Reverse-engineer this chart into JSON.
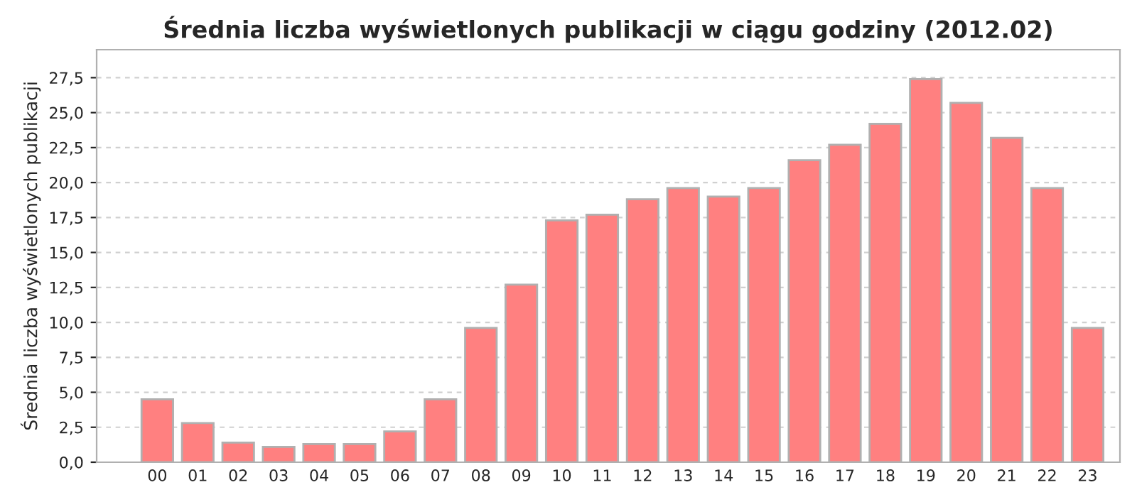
{
  "chart_data": {
    "type": "bar",
    "title": "Średnia liczba wyświetlonych publikacji w ciągu godziny (2012.02)",
    "ylabel": "Średnia liczba wyświetlonych publikacji",
    "categories": [
      "00",
      "01",
      "02",
      "03",
      "04",
      "05",
      "06",
      "07",
      "08",
      "09",
      "10",
      "11",
      "12",
      "13",
      "14",
      "15",
      "16",
      "17",
      "18",
      "19",
      "20",
      "21",
      "22",
      "23"
    ],
    "values": [
      4.5,
      2.8,
      1.4,
      1.1,
      1.3,
      1.3,
      2.2,
      4.5,
      9.6,
      12.7,
      17.3,
      17.7,
      18.8,
      19.6,
      19.0,
      19.6,
      21.6,
      22.7,
      24.2,
      27.4,
      25.7,
      23.2,
      19.6,
      9.6
    ],
    "color": "#ff8080",
    "ylim": [
      0,
      29.5
    ],
    "yticks": [
      {
        "value": 0,
        "label": "0,0"
      },
      {
        "value": 2.5,
        "label": "2,5"
      },
      {
        "value": 5,
        "label": "5,0"
      },
      {
        "value": 7.5,
        "label": "7,5"
      },
      {
        "value": 10,
        "label": "10,0"
      },
      {
        "value": 12.5,
        "label": "12,5"
      },
      {
        "value": 15,
        "label": "15,0"
      },
      {
        "value": 17.5,
        "label": "17,5"
      },
      {
        "value": 20,
        "label": "20,0"
      },
      {
        "value": 22.5,
        "label": "22,5"
      },
      {
        "value": 25,
        "label": "25,0"
      },
      {
        "value": 27.5,
        "label": "27,5"
      }
    ],
    "grid": "y"
  }
}
